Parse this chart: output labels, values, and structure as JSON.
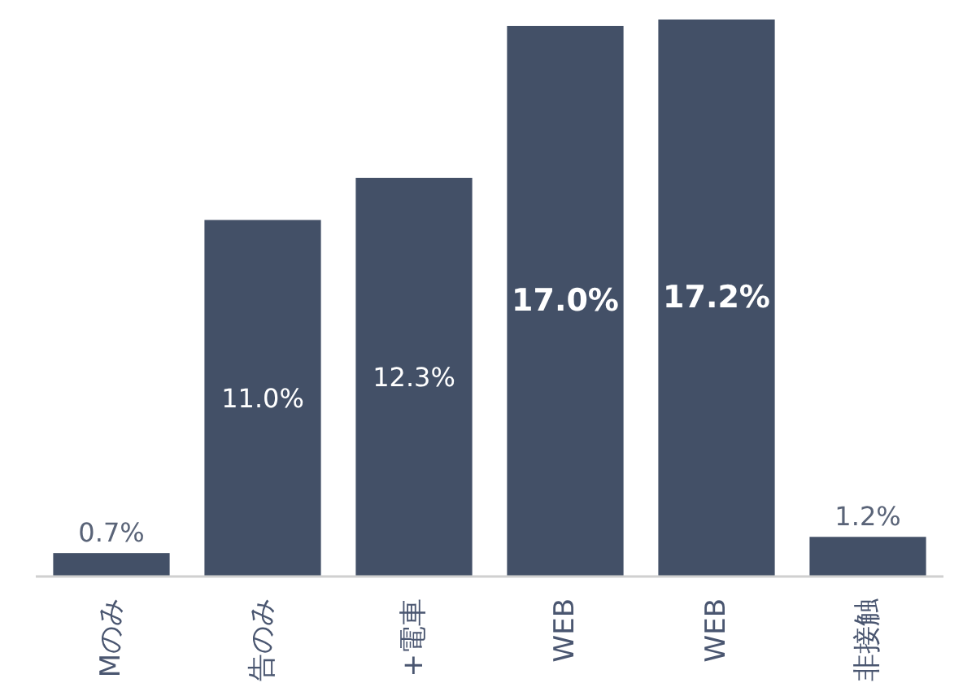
{
  "chart_data": {
    "type": "bar",
    "categories": [
      "Mのみ",
      "告のみ",
      "+電車",
      "WEB",
      "WEB",
      "非接触"
    ],
    "values": [
      0.7,
      11.0,
      12.3,
      17.0,
      17.2,
      1.2
    ],
    "color": "#435067",
    "value_labels": [
      "0.7%",
      "11.0%",
      "12.3%",
      "17.0%",
      "17.2%",
      "1.2%"
    ]
  }
}
